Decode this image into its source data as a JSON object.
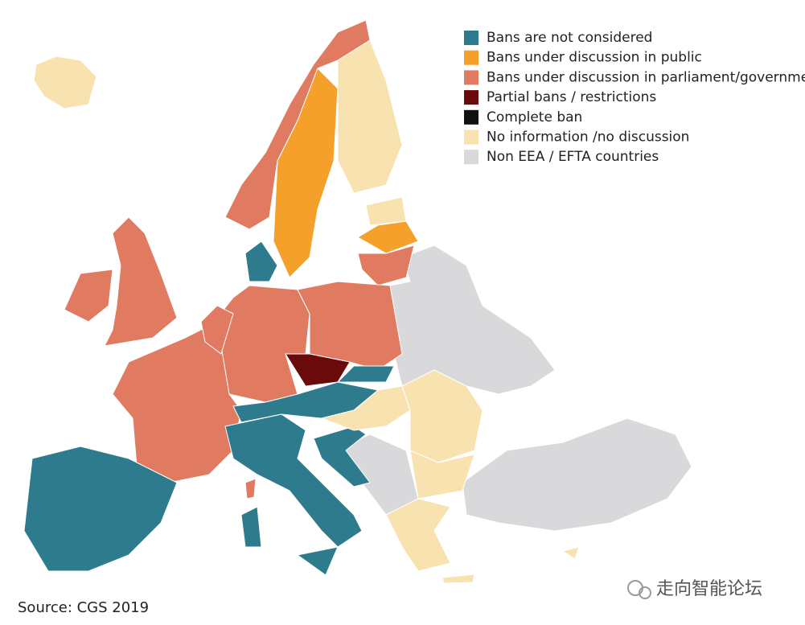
{
  "legend": [
    {
      "label": "Bans are not considered",
      "color": "#2e7b8e"
    },
    {
      "label": "Bans under discussion in public",
      "color": "#f5a02a"
    },
    {
      "label": "Bans under discussion in parliament/government",
      "color": "#e07b62"
    },
    {
      "label": "Partial bans / restrictions",
      "color": "#6b0a0a"
    },
    {
      "label": "Complete ban",
      "color": "#111111"
    },
    {
      "label": "No information /no discussion",
      "color": "#f8e3b0"
    },
    {
      "label": "Non EEA / EFTA countries",
      "color": "#d9d9dc"
    }
  ],
  "source": "Source: CGS 2019",
  "watermark": "走向智能论坛"
}
